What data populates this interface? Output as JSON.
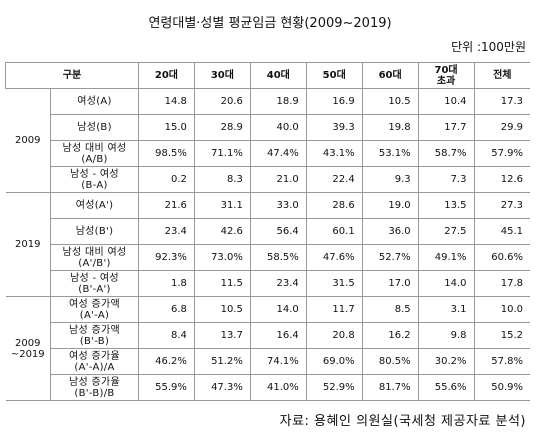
{
  "title": "연령대별·성별 평균임금 현황(2009~2019)",
  "unit": "단위 :100만원",
  "table": {
    "header": [
      [
        "구분"
      ],
      [
        "20대"
      ],
      [
        "30대"
      ],
      [
        "40대"
      ],
      [
        "50대"
      ],
      [
        "60대"
      ],
      [
        "70대",
        "초과"
      ],
      [
        "전체"
      ]
    ],
    "groups": [
      {
        "label": [
          "2009"
        ],
        "rows": [
          {
            "label": [
              "여성(A)"
            ],
            "values": [
              "14.8",
              "20.6",
              "18.9",
              "16.9",
              "10.5",
              "10.4",
              "17.3"
            ]
          },
          {
            "label": [
              "남성(B)"
            ],
            "values": [
              "15.0",
              "28.9",
              "40.0",
              "39.3",
              "19.8",
              "17.7",
              "29.9"
            ]
          },
          {
            "label": [
              "남성 대비 여성",
              "(A/B)"
            ],
            "values": [
              "98.5%",
              "71.1%",
              "47.4%",
              "43.1%",
              "53.1%",
              "58.7%",
              "57.9%"
            ]
          },
          {
            "label": [
              "남성 - 여성",
              "(B-A)"
            ],
            "values": [
              "0.2",
              "8.3",
              "21.0",
              "22.4",
              "9.3",
              "7.3",
              "12.6"
            ]
          }
        ]
      },
      {
        "label": [
          "2019"
        ],
        "rows": [
          {
            "label": [
              "여성(A')"
            ],
            "values": [
              "21.6",
              "31.1",
              "33.0",
              "28.6",
              "19.0",
              "13.5",
              "27.3"
            ]
          },
          {
            "label": [
              "남성(B')"
            ],
            "values": [
              "23.4",
              "42.6",
              "56.4",
              "60.1",
              "36.0",
              "27.5",
              "45.1"
            ]
          },
          {
            "label": [
              "남성 대비 여성",
              "(A'/B')"
            ],
            "values": [
              "92.3%",
              "73.0%",
              "58.5%",
              "47.6%",
              "52.7%",
              "49.1%",
              "60.6%"
            ]
          },
          {
            "label": [
              "남성 - 여성",
              "(B'-A')"
            ],
            "values": [
              "1.8",
              "11.5",
              "23.4",
              "31.5",
              "17.0",
              "14.0",
              "17.8"
            ]
          }
        ]
      },
      {
        "label": [
          "2009",
          "~2019"
        ],
        "rows": [
          {
            "label": [
              "여성 증가액",
              "(A'-A)"
            ],
            "values": [
              "6.8",
              "10.5",
              "14.0",
              "11.7",
              "8.5",
              "3.1",
              "10.0"
            ]
          },
          {
            "label": [
              "남성 증가액",
              "(B'-B)"
            ],
            "values": [
              "8.4",
              "13.7",
              "16.4",
              "20.8",
              "16.2",
              "9.8",
              "15.2"
            ]
          },
          {
            "label": [
              "여성 증가율",
              "(A'-A)/A"
            ],
            "values": [
              "46.2%",
              "51.2%",
              "74.1%",
              "69.0%",
              "80.5%",
              "30.2%",
              "57.8%"
            ]
          },
          {
            "label": [
              "남성 증가율",
              "(B'-B)/B"
            ],
            "values": [
              "55.9%",
              "47.3%",
              "41.0%",
              "52.9%",
              "81.7%",
              "55.6%",
              "50.9%"
            ]
          }
        ]
      }
    ]
  },
  "source": "자료: 용혜인 의원실(국세청 제공자료 분석)"
}
